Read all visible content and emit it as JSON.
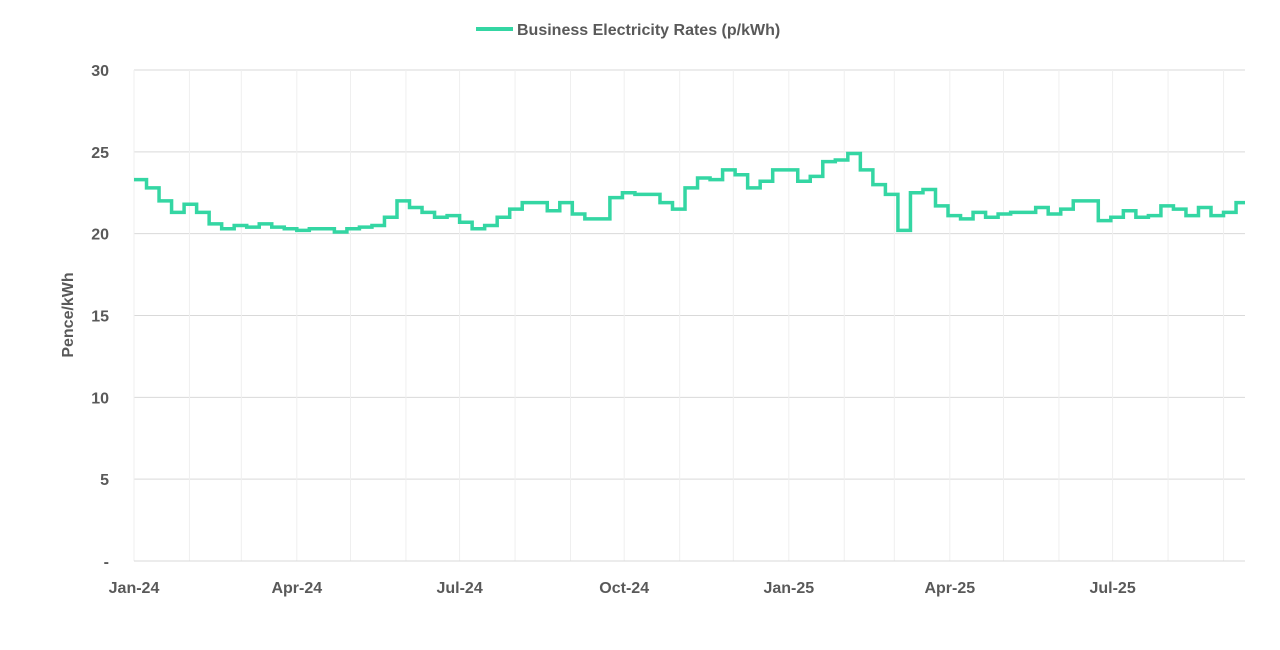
{
  "chart_data": {
    "type": "line",
    "step": true,
    "title": "",
    "xlabel": "",
    "ylabel": "Pence/kWh",
    "ylim": [
      0,
      30
    ],
    "xlim": [
      "2024-01-01",
      "2025-09-13"
    ],
    "grid": true,
    "legend_position": "top",
    "yticks": [
      0,
      5,
      10,
      15,
      20,
      25,
      30
    ],
    "ytick_labels": [
      "-",
      "5",
      "10",
      "15",
      "20",
      "25",
      "30"
    ],
    "xticks": [
      "2024-01-01",
      "2024-04-01",
      "2024-07-01",
      "2024-10-01",
      "2025-01-01",
      "2025-04-01",
      "2025-07-01"
    ],
    "xtick_labels": [
      "Jan-24",
      "Apr-24",
      "Jul-24",
      "Oct-24",
      "Jan-25",
      "Apr-25",
      "Jul-25"
    ],
    "series": [
      {
        "name": "Business Electricity Rates (p/kWh)",
        "color": "#34d6a3",
        "x": [
          "2024-01-01",
          "2024-01-08",
          "2024-01-15",
          "2024-01-22",
          "2024-01-29",
          "2024-02-05",
          "2024-02-12",
          "2024-02-19",
          "2024-02-26",
          "2024-03-04",
          "2024-03-11",
          "2024-03-18",
          "2024-03-25",
          "2024-04-01",
          "2024-04-08",
          "2024-04-15",
          "2024-04-22",
          "2024-04-29",
          "2024-05-06",
          "2024-05-13",
          "2024-05-20",
          "2024-05-27",
          "2024-06-03",
          "2024-06-10",
          "2024-06-17",
          "2024-06-24",
          "2024-07-01",
          "2024-07-08",
          "2024-07-15",
          "2024-07-22",
          "2024-07-29",
          "2024-08-05",
          "2024-08-12",
          "2024-08-19",
          "2024-08-26",
          "2024-09-02",
          "2024-09-09",
          "2024-09-16",
          "2024-09-23",
          "2024-09-30",
          "2024-10-07",
          "2024-10-14",
          "2024-10-21",
          "2024-10-28",
          "2024-11-04",
          "2024-11-11",
          "2024-11-18",
          "2024-11-25",
          "2024-12-02",
          "2024-12-09",
          "2024-12-16",
          "2024-12-23",
          "2024-12-30",
          "2025-01-06",
          "2025-01-13",
          "2025-01-20",
          "2025-01-27",
          "2025-02-03",
          "2025-02-10",
          "2025-02-17",
          "2025-02-24",
          "2025-03-03",
          "2025-03-10",
          "2025-03-17",
          "2025-03-24",
          "2025-03-31",
          "2025-04-07",
          "2025-04-14",
          "2025-04-21",
          "2025-04-28",
          "2025-05-05",
          "2025-05-12",
          "2025-05-19",
          "2025-05-26",
          "2025-06-02",
          "2025-06-09",
          "2025-06-16",
          "2025-06-23",
          "2025-06-30",
          "2025-07-07",
          "2025-07-14",
          "2025-07-21",
          "2025-07-28",
          "2025-08-04",
          "2025-08-11",
          "2025-08-18",
          "2025-08-25",
          "2025-09-01",
          "2025-09-08"
        ],
        "y": [
          23.3,
          22.8,
          22.0,
          21.3,
          21.8,
          21.3,
          20.6,
          20.3,
          20.5,
          20.4,
          20.6,
          20.4,
          20.3,
          20.2,
          20.3,
          20.3,
          20.1,
          20.3,
          20.4,
          20.5,
          21.0,
          22.0,
          21.6,
          21.3,
          21.0,
          21.1,
          20.7,
          20.3,
          20.5,
          21.0,
          21.5,
          21.9,
          21.9,
          21.4,
          21.9,
          21.2,
          20.9,
          20.9,
          22.2,
          22.5,
          22.4,
          22.4,
          21.9,
          21.5,
          22.8,
          23.4,
          23.3,
          23.9,
          23.6,
          22.8,
          23.2,
          23.9,
          23.9,
          23.2,
          23.5,
          24.4,
          24.5,
          24.9,
          23.9,
          23.0,
          22.4,
          20.2,
          22.5,
          22.7,
          21.7,
          21.1,
          20.9,
          21.3,
          21.0,
          21.2,
          21.3,
          21.3,
          21.6,
          21.2,
          21.5,
          22.0,
          22.0,
          20.8,
          21.0,
          21.4,
          21.0,
          21.1,
          21.7,
          21.5,
          21.1,
          21.6,
          21.1,
          21.3,
          21.9
        ]
      }
    ]
  }
}
